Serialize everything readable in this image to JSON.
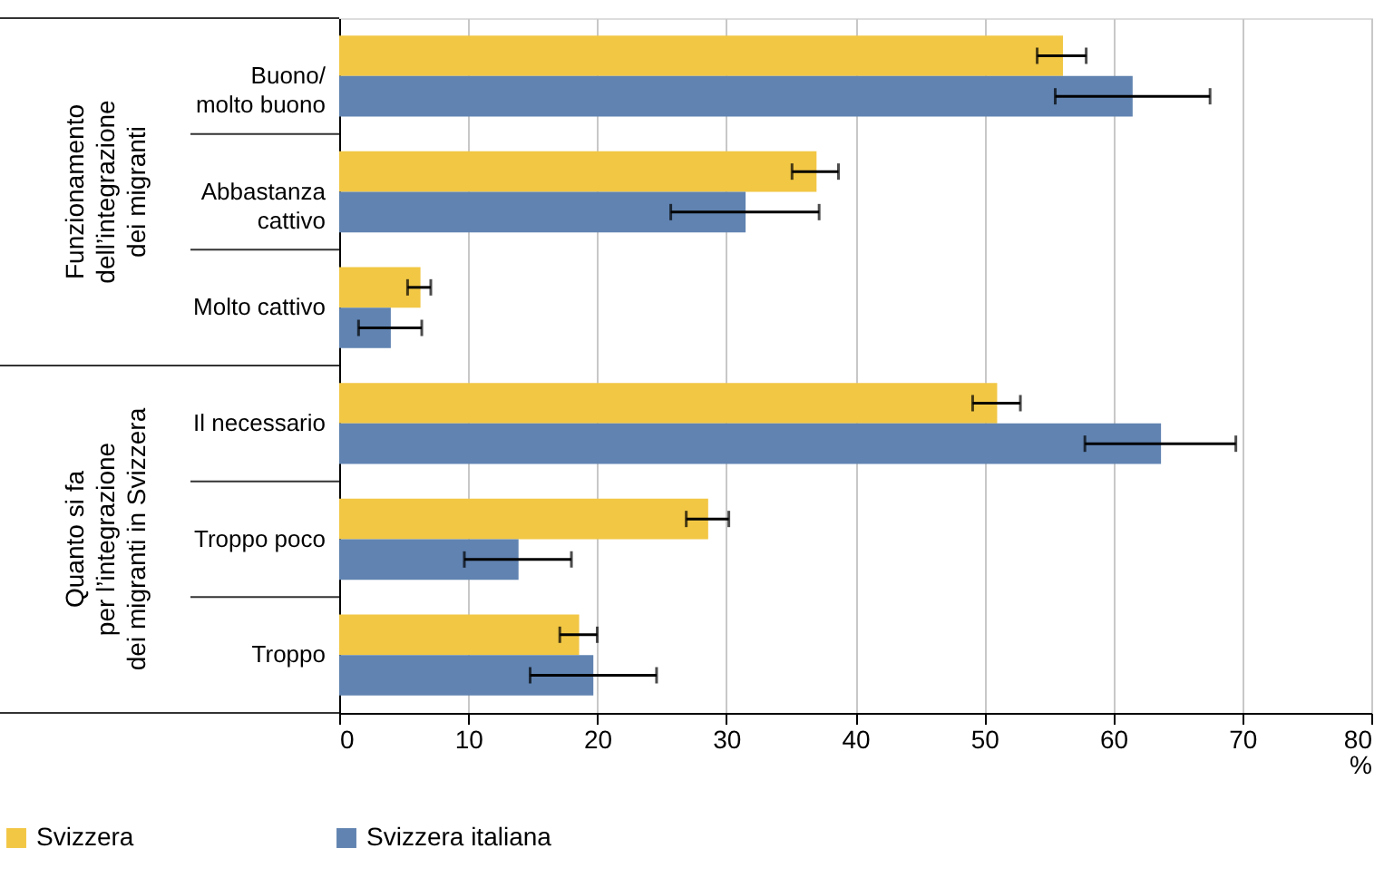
{
  "chart_data": {
    "type": "bar",
    "orientation": "horizontal",
    "categories": [
      "Buono/\nmolto buono",
      "Abbastanza\ncattivo",
      "Molto cattivo",
      "Il necessario",
      "Troppo poco",
      "Troppo"
    ],
    "series": [
      {
        "name": "Svizzera",
        "color": "#f2c744",
        "values": [
          56.1,
          37.0,
          6.3,
          51.0,
          28.6,
          18.6
        ],
        "errors": [
          [
            54.1,
            57.9
          ],
          [
            35.1,
            38.7
          ],
          [
            5.3,
            7.1
          ],
          [
            49.1,
            52.8
          ],
          [
            26.9,
            30.2
          ],
          [
            17.1,
            20.0
          ]
        ]
      },
      {
        "name": "Svizzera italiana",
        "color": "#6083b1",
        "values": [
          61.5,
          31.5,
          4.0,
          63.7,
          13.9,
          19.7
        ],
        "errors": [
          [
            55.5,
            67.5
          ],
          [
            25.7,
            37.2
          ],
          [
            1.5,
            6.4
          ],
          [
            57.8,
            69.5
          ],
          [
            9.7,
            18.0
          ],
          [
            14.8,
            24.6
          ]
        ]
      }
    ],
    "xlim": [
      0,
      80
    ],
    "xticks": [
      0,
      10,
      20,
      30,
      40,
      50,
      60,
      70,
      80
    ],
    "xlabel": "%",
    "grid": "x",
    "legend": "bottom left",
    "annotations": [
      "Funzionamento\ndell’integrazione\ndei migranti",
      "Quanto si fa\nper l’integrazione\ndei migranti in Svizzera"
    ]
  }
}
